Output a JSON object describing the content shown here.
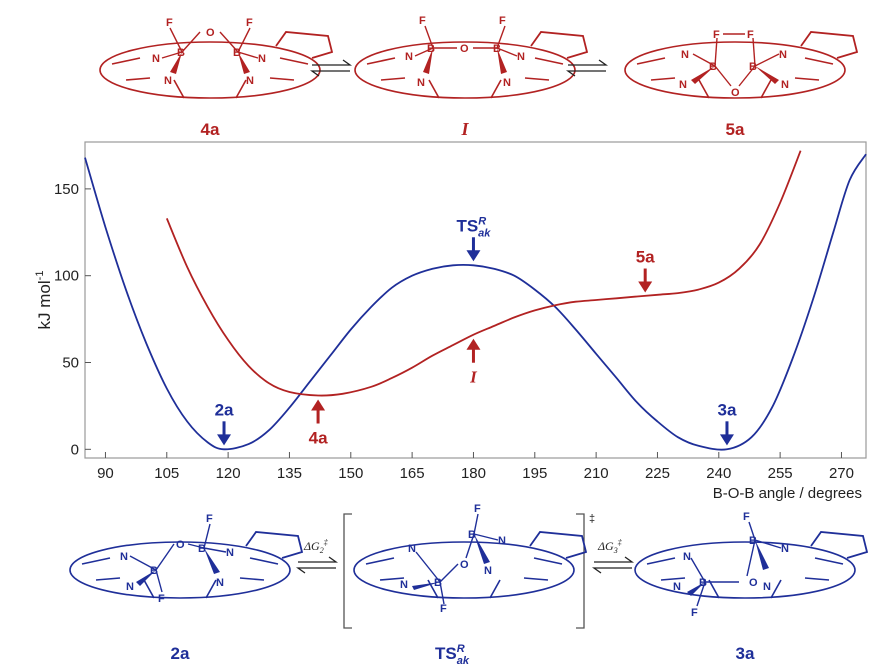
{
  "chart_data": {
    "type": "line",
    "title": "",
    "xlabel": "B-O-B angle / degrees",
    "ylabel": "kJ mol",
    "ylabel_sup": "-1",
    "xlim": [
      85,
      276
    ],
    "ylim": [
      -5,
      177
    ],
    "x_ticks": [
      90,
      105,
      120,
      135,
      150,
      165,
      180,
      195,
      210,
      225,
      240,
      255,
      270
    ],
    "y_ticks": [
      0,
      50,
      100,
      150
    ],
    "grid": false,
    "series": [
      {
        "color": "#1f2f99",
        "x": [
          85,
          90,
          95,
          100,
          105,
          110,
          115,
          119,
          125,
          130,
          135,
          140,
          145,
          150,
          155,
          160,
          165,
          170,
          175,
          180,
          185,
          190,
          195,
          200,
          205,
          210,
          215,
          220,
          225,
          230,
          235,
          242,
          248,
          253,
          258,
          263,
          268,
          272,
          276
        ],
        "y": [
          168,
          128,
          92,
          61,
          35,
          16,
          4,
          0,
          3,
          11,
          24,
          39,
          54,
          69,
          82,
          93,
          100,
          104,
          106,
          106,
          104,
          100,
          92,
          82,
          69,
          55,
          41,
          27,
          16,
          7,
          2,
          0,
          7,
          24,
          52,
          86,
          125,
          155,
          170
        ]
      },
      {
        "color": "#b22222",
        "x": [
          105,
          110,
          115,
          120,
          125,
          130,
          135,
          142,
          148,
          155,
          160,
          165,
          170,
          175,
          180,
          185,
          190,
          195,
          200,
          205,
          210,
          215,
          220,
          225,
          230,
          235,
          240,
          245,
          250,
          255,
          260
        ],
        "y": [
          133,
          105,
          82,
          63,
          48,
          38,
          33,
          31,
          32,
          36,
          41,
          47,
          54,
          60,
          66,
          71,
          76,
          80,
          83,
          85,
          86,
          87,
          88,
          89,
          90,
          92,
          96,
          104,
          118,
          142,
          172
        ]
      }
    ],
    "annotations": [
      {
        "label": "2a",
        "color": "blue",
        "x": 119,
        "y": 0,
        "dir": "down"
      },
      {
        "label": "TS",
        "sup": "R",
        "sub": "ak",
        "color": "blue",
        "x": 180,
        "y": 106,
        "dir": "down"
      },
      {
        "label": "3a",
        "color": "blue",
        "x": 242,
        "y": 0,
        "dir": "down"
      },
      {
        "label": "4a",
        "color": "red",
        "x": 142,
        "y": 31,
        "dir": "up"
      },
      {
        "label": "I",
        "color": "red",
        "x": 180,
        "y": 66,
        "dir": "up"
      },
      {
        "label": "5a",
        "color": "red",
        "x": 222,
        "y": 88,
        "dir": "down"
      }
    ]
  },
  "top_scheme": {
    "labels": [
      "4a",
      "I",
      "5a"
    ]
  },
  "bottom_scheme": {
    "labels": [
      "2a",
      "TS",
      "3a"
    ],
    "ts_sup": "R",
    "ts_sub": "ak",
    "dagger": "‡",
    "dg2": "ΔG",
    "dg2_sub": "2",
    "dg3": "ΔG",
    "dg3_sub": "3",
    "dg_sup": "‡"
  },
  "atoms": {
    "B": "B",
    "N": "N",
    "F": "F",
    "O": "O"
  },
  "colors": {
    "red": "#b22222",
    "blue": "#1f2f99"
  }
}
